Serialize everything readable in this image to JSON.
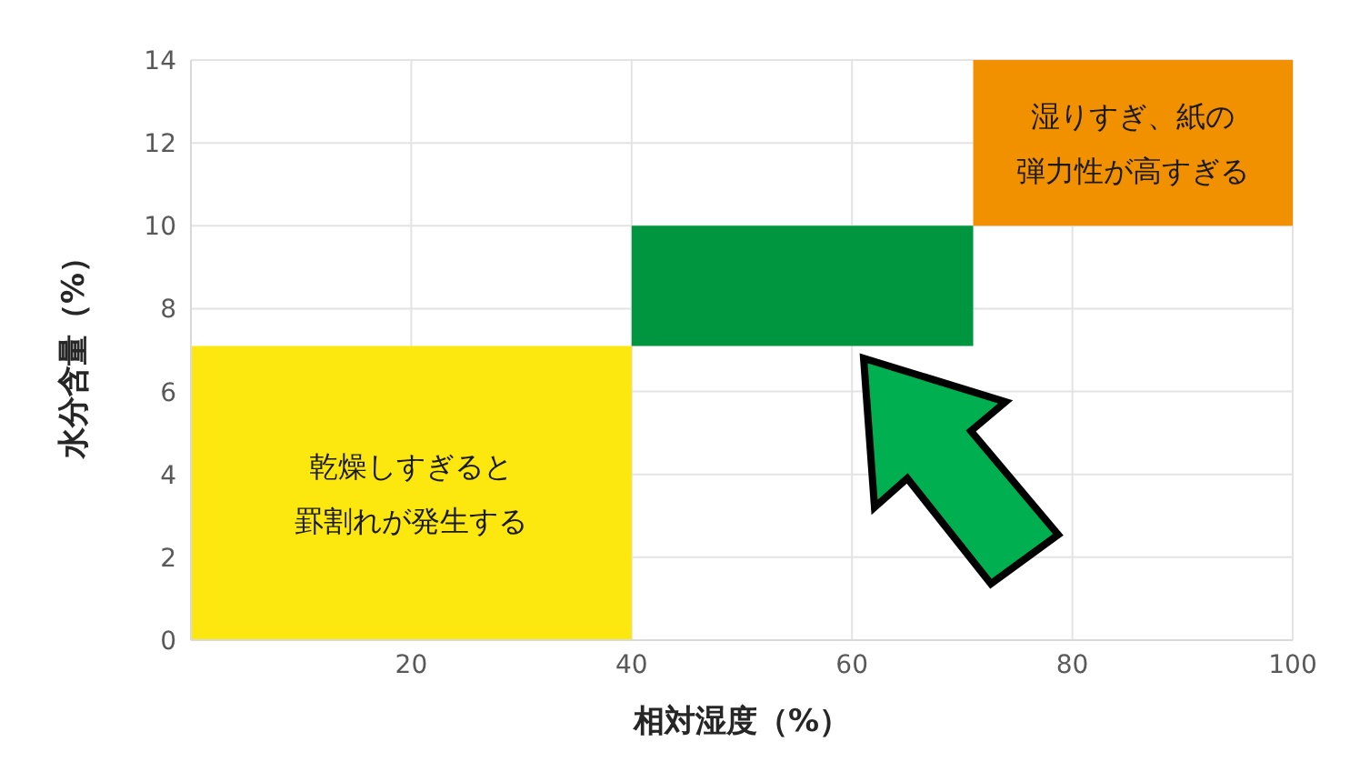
{
  "chart_data": {
    "type": "histogram",
    "xlabel": "相対湿度（%）",
    "ylabel": "水分含量（%）",
    "bins": [
      0,
      40,
      71,
      100
    ],
    "values": [
      7.1,
      2.9,
      4
    ],
    "base": [
      0,
      7.1,
      10
    ],
    "colors": [
      "#fce80f",
      "#00963f",
      "#f29100"
    ],
    "xlim": [
      0,
      100
    ],
    "xticks": [
      {
        "value": 0,
        "label": null
      },
      20,
      40,
      60,
      80,
      100
    ],
    "ylim": [
      0,
      14
    ],
    "yticks": [
      0,
      2,
      4,
      6,
      8,
      10,
      12,
      14
    ],
    "grid": true,
    "annotations": [
      "乾燥しすぎると罫割れが発生する",
      "湿りすぎ、紙の弾力性が高すぎる"
    ]
  }
}
